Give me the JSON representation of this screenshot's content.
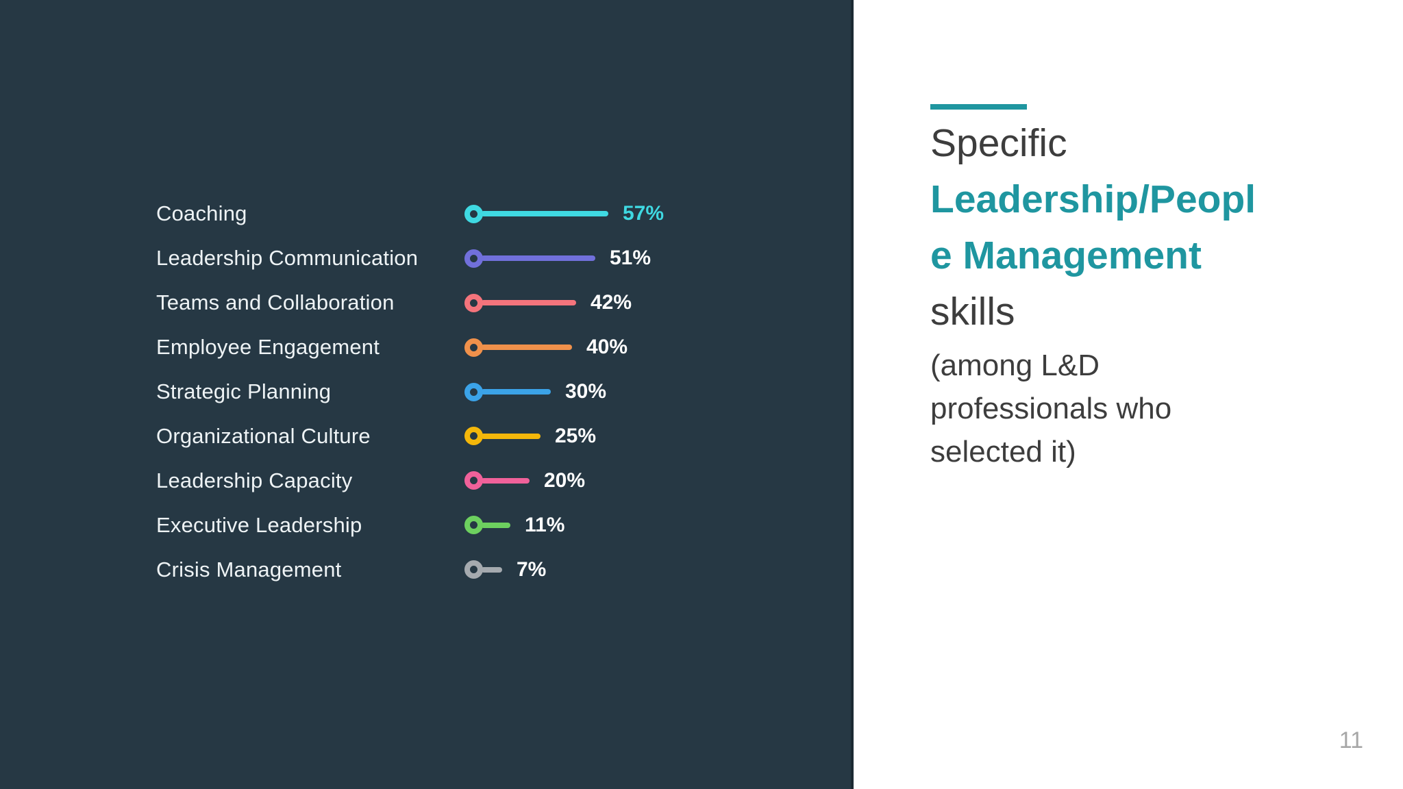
{
  "slide": {
    "page_number": "11",
    "accent_color": "#1f96a0",
    "left_panel_bg": "#263844",
    "title": {
      "line1": "Specific",
      "line2": "Leadership/Peopl",
      "line3": "e Management",
      "line4": "skills",
      "subtitle_lines": [
        "(among L&D",
        "professionals who",
        "selected it)"
      ]
    }
  },
  "chart_data": {
    "type": "bar",
    "variant": "lollipop",
    "title": "",
    "xlabel": "",
    "ylabel": "",
    "unit": "%",
    "xlim": [
      0,
      60
    ],
    "grid": false,
    "legend": "none",
    "background": "#263844",
    "categories": [
      "Coaching",
      "Leadership Communication",
      "Teams and Collaboration",
      "Employee Engagement",
      "Strategic Planning",
      "Organizational Culture",
      "Leadership Capacity",
      "Executive Leadership",
      "Crisis Management"
    ],
    "values": [
      57,
      51,
      42,
      40,
      30,
      25,
      20,
      11,
      7
    ],
    "value_labels": [
      "57%",
      "51%",
      "42%",
      "40%",
      "30%",
      "25%",
      "20%",
      "11%",
      "7%"
    ],
    "colors": [
      "#3fd9e2",
      "#7170db",
      "#f4747c",
      "#f0914b",
      "#3ba3e8",
      "#f4b70a",
      "#f0619a",
      "#6dd05f",
      "#a5aaaf"
    ],
    "value_label_colors": [
      "#3fd9e2",
      "#ffffff",
      "#ffffff",
      "#ffffff",
      "#ffffff",
      "#ffffff",
      "#ffffff",
      "#ffffff",
      "#ffffff"
    ]
  }
}
